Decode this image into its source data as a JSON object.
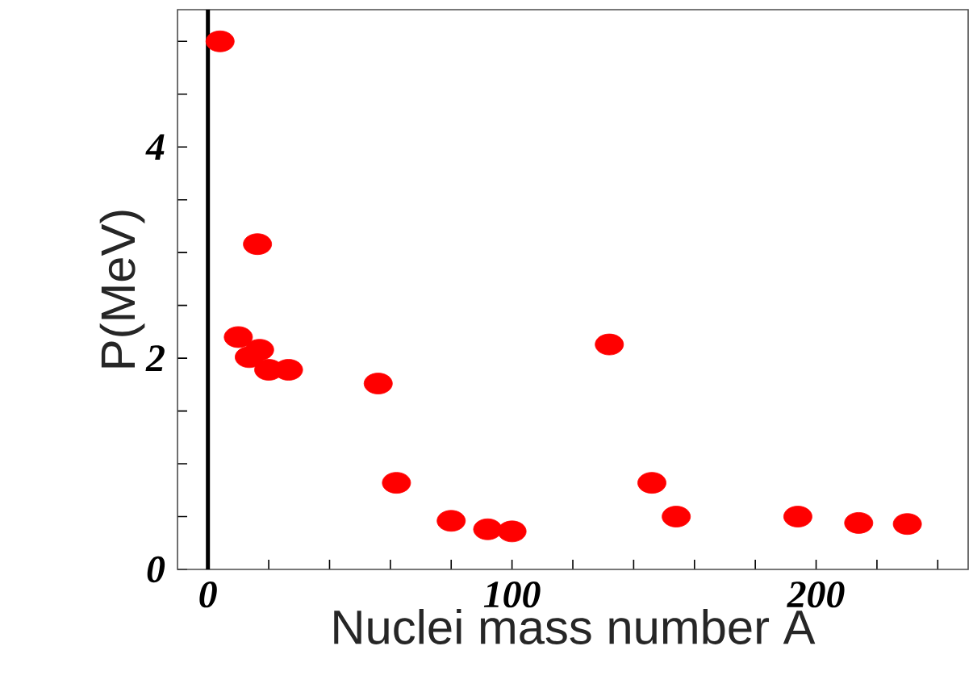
{
  "chart_data": {
    "type": "scatter",
    "xlabel": "Nuclei mass number A",
    "ylabel": "P(MeV)",
    "x": [
      4,
      16.3,
      10,
      13.6,
      17,
      20,
      26.5,
      56,
      62,
      80,
      92,
      100,
      132,
      146,
      154,
      194,
      214,
      230
    ],
    "series": [
      {
        "color": "#ff0000",
        "values": [
          5.0,
          3.08,
          2.2,
          2.01,
          2.08,
          1.89,
          1.89,
          1.76,
          0.82,
          0.46,
          0.38,
          0.36,
          2.13,
          0.82,
          0.5,
          0.5,
          0.44,
          0.43
        ]
      }
    ],
    "xlim": [
      -10,
      250
    ],
    "xticks": [
      0,
      {
        "value": 20,
        "label": null
      },
      {
        "value": 40,
        "label": null
      },
      {
        "value": 60,
        "label": null
      },
      {
        "value": 80,
        "label": null
      },
      100,
      {
        "value": 120,
        "label": null
      },
      {
        "value": 140,
        "label": null
      },
      {
        "value": 160,
        "label": null
      },
      {
        "value": 180,
        "label": null
      },
      200,
      {
        "value": 220,
        "label": null
      },
      {
        "value": 240,
        "label": null
      }
    ],
    "ylim": [
      0,
      5.3
    ],
    "yticks": [
      0,
      {
        "value": 0.5,
        "label": null
      },
      {
        "value": 1,
        "label": null
      },
      {
        "value": 1.5,
        "label": null
      },
      2,
      {
        "value": 2.5,
        "label": null
      },
      {
        "value": 3,
        "label": null
      },
      {
        "value": 3.5,
        "label": null
      },
      4,
      {
        "value": 4.5,
        "label": null
      },
      {
        "value": 5,
        "label": null
      }
    ],
    "ref_lines": [
      {
        "axis": "x",
        "value": 0,
        "color": "#000000"
      }
    ],
    "marker": "circle",
    "grid": false
  }
}
